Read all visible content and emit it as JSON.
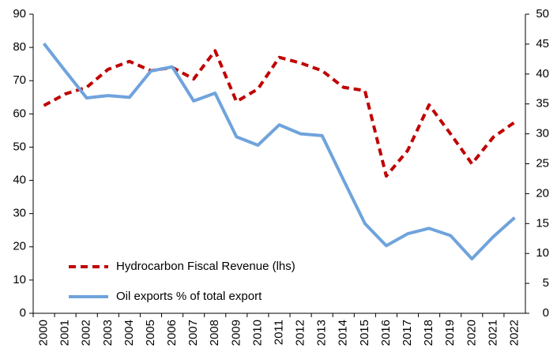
{
  "chart_data": {
    "type": "line",
    "categories": [
      "2000",
      "2001",
      "2002",
      "2003",
      "2004",
      "2005",
      "2006",
      "2007",
      "2008",
      "2009",
      "2010",
      "2011",
      "2012",
      "2013",
      "2014",
      "2015",
      "2016",
      "2017",
      "2018",
      "2019",
      "2020",
      "2021",
      "2022"
    ],
    "series": [
      {
        "name": "Hydrocarbon Fiscal Revenue (lhs)",
        "color": "#c00000",
        "dashed": true,
        "axis": "y",
        "values": [
          62.5,
          66,
          68,
          73.4,
          75.8,
          73,
          74,
          70.5,
          79,
          63.7,
          67.5,
          77,
          75.3,
          73,
          68,
          67,
          41.3,
          49,
          62.7,
          54,
          45,
          53,
          57.5
        ]
      },
      {
        "name": "Oil exports % of total export",
        "color": "#6fa3dc",
        "dashed": false,
        "axis": "y2",
        "values": [
          45.1,
          40.5,
          36,
          36.4,
          36.1,
          40.5,
          41.2,
          35.5,
          36.8,
          29.5,
          28.1,
          31.5,
          30,
          29.7,
          22.3,
          15,
          11.3,
          13.3,
          14.2,
          13,
          9.1,
          12.8,
          16
        ]
      }
    ],
    "ylim": [
      0,
      90
    ],
    "yticks": [
      0,
      10,
      20,
      30,
      40,
      50,
      60,
      70,
      80,
      90
    ],
    "y2lim": [
      0,
      50
    ],
    "y2ticks": [
      0,
      5,
      10,
      15,
      20,
      25,
      30,
      35,
      40,
      45,
      50
    ],
    "grid": false,
    "legend": "lower left"
  }
}
